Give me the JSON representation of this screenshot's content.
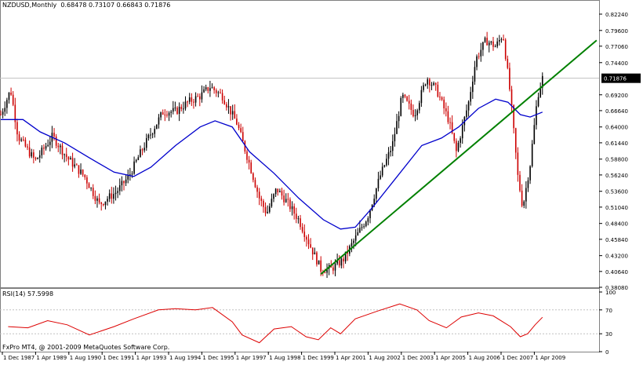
{
  "chart_header": {
    "symbol": "NZDUSD,Monthly",
    "ohlc": "0.68478 0.73107 0.66843 0.71876"
  },
  "rsi_header": "RSI(14) 57.5998",
  "footer": "FxPro MT4, @ 2001-2009 MetaQuotes Software Corp.",
  "colors": {
    "background": "#ffffff",
    "bull_candle": "#000000",
    "bear_candle": "#cc0000",
    "moving_average": "#0000cc",
    "trendline": "#008000",
    "rsi_line": "#dd0000",
    "grid": "#c0c0c0",
    "frame": "#808080"
  },
  "chart_data": [
    {
      "type": "candlestick",
      "title": "NZDUSD,Monthly",
      "x_ticks": [
        "1 Dec 1987",
        "1 Apr 1989",
        "1 Aug 1990",
        "1 Dec 1991",
        "1 Apr 1993",
        "1 Aug 1994",
        "1 Dec 1995",
        "1 Apr 1997",
        "1 Aug 1998",
        "1 Dec 1999",
        "1 Apr 2001",
        "1 Aug 2002",
        "1 Dec 2003",
        "1 Apr 2005",
        "1 Aug 2006",
        "1 Dec 2007",
        "1 Apr 2009"
      ],
      "y_ticks": [
        "0.82240",
        "0.79600",
        "0.77060",
        "0.74400",
        "0.71876",
        "0.69200",
        "0.66640",
        "0.64000",
        "0.61440",
        "0.58800",
        "0.56240",
        "0.53600",
        "0.51040",
        "0.48400",
        "0.45840",
        "0.43200",
        "0.40640",
        "0.38080"
      ],
      "ylim": [
        0.3808,
        0.8224
      ],
      "current_price": 0.71876,
      "series": [
        {
          "name": "price",
          "points": [
            {
              "year": 1987.9,
              "value": 0.66
            },
            {
              "year": 1988.3,
              "value": 0.7
            },
            {
              "year": 1988.6,
              "value": 0.625
            },
            {
              "year": 1989.3,
              "value": 0.585
            },
            {
              "year": 1990.0,
              "value": 0.625
            },
            {
              "year": 1990.6,
              "value": 0.59
            },
            {
              "year": 1991.3,
              "value": 0.56
            },
            {
              "year": 1991.9,
              "value": 0.515
            },
            {
              "year": 1992.6,
              "value": 0.535
            },
            {
              "year": 1993.1,
              "value": 0.56
            },
            {
              "year": 1993.6,
              "value": 0.6
            },
            {
              "year": 1994.0,
              "value": 0.63
            },
            {
              "year": 1994.5,
              "value": 0.665
            },
            {
              "year": 1995.0,
              "value": 0.665
            },
            {
              "year": 1995.5,
              "value": 0.68
            },
            {
              "year": 1996.0,
              "value": 0.69
            },
            {
              "year": 1996.4,
              "value": 0.705
            },
            {
              "year": 1996.9,
              "value": 0.69
            },
            {
              "year": 1997.5,
              "value": 0.645
            },
            {
              "year": 1998.0,
              "value": 0.58
            },
            {
              "year": 1998.4,
              "value": 0.525
            },
            {
              "year": 1998.7,
              "value": 0.5
            },
            {
              "year": 1999.1,
              "value": 0.54
            },
            {
              "year": 1999.5,
              "value": 0.52
            },
            {
              "year": 2000.0,
              "value": 0.49
            },
            {
              "year": 2000.5,
              "value": 0.445
            },
            {
              "year": 2000.9,
              "value": 0.41
            },
            {
              "year": 2001.3,
              "value": 0.41
            },
            {
              "year": 2001.8,
              "value": 0.425
            },
            {
              "year": 2002.3,
              "value": 0.46
            },
            {
              "year": 2002.8,
              "value": 0.495
            },
            {
              "year": 2003.3,
              "value": 0.56
            },
            {
              "year": 2003.8,
              "value": 0.61
            },
            {
              "year": 2004.2,
              "value": 0.69
            },
            {
              "year": 2004.7,
              "value": 0.66
            },
            {
              "year": 2005.2,
              "value": 0.72
            },
            {
              "year": 2005.6,
              "value": 0.7
            },
            {
              "year": 2006.1,
              "value": 0.65
            },
            {
              "year": 2006.4,
              "value": 0.6
            },
            {
              "year": 2006.9,
              "value": 0.68
            },
            {
              "year": 2007.2,
              "value": 0.75
            },
            {
              "year": 2007.6,
              "value": 0.78
            },
            {
              "year": 2008.0,
              "value": 0.77
            },
            {
              "year": 2008.3,
              "value": 0.79
            },
            {
              "year": 2008.6,
              "value": 0.69
            },
            {
              "year": 2008.9,
              "value": 0.56
            },
            {
              "year": 2009.1,
              "value": 0.51
            },
            {
              "year": 2009.4,
              "value": 0.58
            },
            {
              "year": 2009.7,
              "value": 0.69
            },
            {
              "year": 2009.9,
              "value": 0.719
            }
          ]
        },
        {
          "name": "moving average",
          "points": [
            {
              "year": 1987.9,
              "value": 0.652
            },
            {
              "year": 1988.8,
              "value": 0.652
            },
            {
              "year": 1989.5,
              "value": 0.632
            },
            {
              "year": 1990.5,
              "value": 0.614
            },
            {
              "year": 1991.5,
              "value": 0.59
            },
            {
              "year": 1992.5,
              "value": 0.567
            },
            {
              "year": 1993.3,
              "value": 0.56
            },
            {
              "year": 1994.0,
              "value": 0.575
            },
            {
              "year": 1995.0,
              "value": 0.61
            },
            {
              "year": 1996.0,
              "value": 0.64
            },
            {
              "year": 1996.6,
              "value": 0.65
            },
            {
              "year": 1997.3,
              "value": 0.64
            },
            {
              "year": 1998.0,
              "value": 0.6
            },
            {
              "year": 1999.0,
              "value": 0.565
            },
            {
              "year": 2000.0,
              "value": 0.525
            },
            {
              "year": 2001.0,
              "value": 0.49
            },
            {
              "year": 2001.7,
              "value": 0.475
            },
            {
              "year": 2002.3,
              "value": 0.478
            },
            {
              "year": 2003.0,
              "value": 0.51
            },
            {
              "year": 2004.0,
              "value": 0.56
            },
            {
              "year": 2005.0,
              "value": 0.61
            },
            {
              "year": 2005.8,
              "value": 0.622
            },
            {
              "year": 2006.5,
              "value": 0.64
            },
            {
              "year": 2007.3,
              "value": 0.67
            },
            {
              "year": 2008.0,
              "value": 0.685
            },
            {
              "year": 2008.5,
              "value": 0.68
            },
            {
              "year": 2009.0,
              "value": 0.66
            },
            {
              "year": 2009.4,
              "value": 0.656
            },
            {
              "year": 2009.9,
              "value": 0.664
            }
          ]
        },
        {
          "name": "trendline",
          "points": [
            {
              "year": 2000.9,
              "value": 0.402
            },
            {
              "year": 2012.1,
              "value": 0.78
            }
          ]
        }
      ]
    },
    {
      "type": "line",
      "title": "RSI(14) 57.5998",
      "y_ticks": [
        "100",
        "70",
        "30",
        "0"
      ],
      "ylim": [
        0,
        100
      ],
      "levels": [
        70,
        30
      ],
      "series": [
        {
          "name": "RSI",
          "points": [
            {
              "year": 1988.2,
              "value": 42
            },
            {
              "year": 1989.0,
              "value": 40
            },
            {
              "year": 1989.8,
              "value": 52
            },
            {
              "year": 1990.6,
              "value": 45
            },
            {
              "year": 1991.5,
              "value": 28
            },
            {
              "year": 1992.5,
              "value": 42
            },
            {
              "year": 1993.3,
              "value": 55
            },
            {
              "year": 1994.3,
              "value": 70
            },
            {
              "year": 1995.0,
              "value": 72
            },
            {
              "year": 1995.8,
              "value": 70
            },
            {
              "year": 1996.5,
              "value": 74
            },
            {
              "year": 1997.3,
              "value": 50
            },
            {
              "year": 1997.7,
              "value": 28
            },
            {
              "year": 1998.4,
              "value": 15
            },
            {
              "year": 1999.0,
              "value": 38
            },
            {
              "year": 1999.7,
              "value": 42
            },
            {
              "year": 2000.3,
              "value": 25
            },
            {
              "year": 2000.8,
              "value": 20
            },
            {
              "year": 2001.3,
              "value": 40
            },
            {
              "year": 2001.7,
              "value": 30
            },
            {
              "year": 2002.3,
              "value": 55
            },
            {
              "year": 2003.2,
              "value": 68
            },
            {
              "year": 2004.1,
              "value": 80
            },
            {
              "year": 2004.8,
              "value": 70
            },
            {
              "year": 2005.3,
              "value": 52
            },
            {
              "year": 2006.0,
              "value": 40
            },
            {
              "year": 2006.6,
              "value": 58
            },
            {
              "year": 2007.3,
              "value": 65
            },
            {
              "year": 2007.9,
              "value": 60
            },
            {
              "year": 2008.6,
              "value": 42
            },
            {
              "year": 2009.0,
              "value": 25
            },
            {
              "year": 2009.3,
              "value": 30
            },
            {
              "year": 2009.6,
              "value": 45
            },
            {
              "year": 2009.9,
              "value": 57.6
            }
          ]
        }
      ]
    }
  ]
}
